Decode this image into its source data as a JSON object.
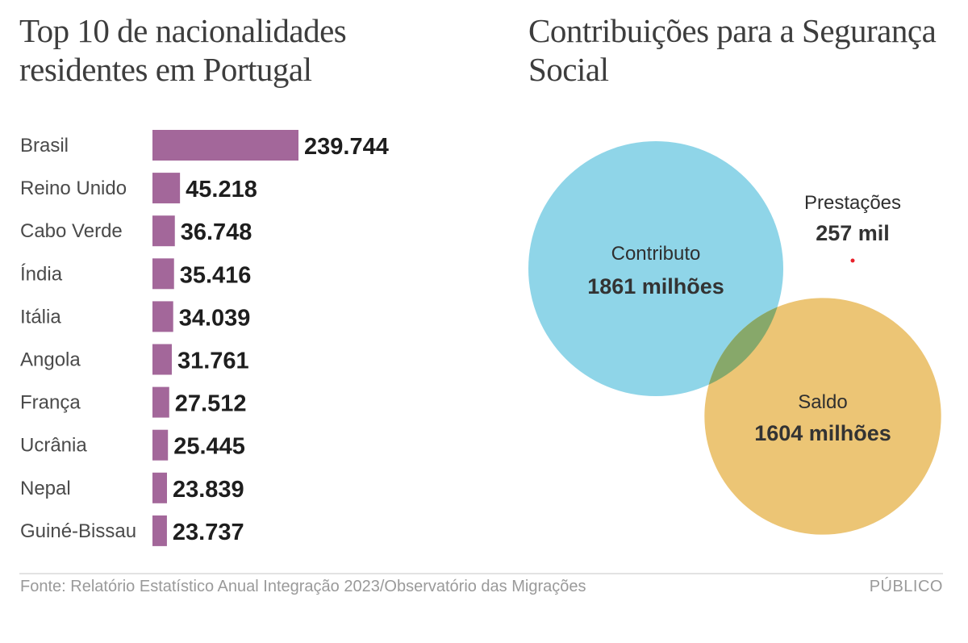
{
  "chart_data": [
    {
      "type": "bar",
      "orientation": "horizontal",
      "title": "Top 10 de nacionalidades residentes em Portugal",
      "categories": [
        "Brasil",
        "Reino Unido",
        "Cabo Verde",
        "Índia",
        "Itália",
        "Angola",
        "França",
        "Ucrânia",
        "Nepal",
        "Guiné-Bissau"
      ],
      "values": [
        239744,
        45218,
        36748,
        35416,
        34039,
        31761,
        27512,
        25445,
        23839,
        23737
      ],
      "value_labels": [
        "239.744",
        "45.218",
        "36.748",
        "35.416",
        "34.039",
        "31.761",
        "27.512",
        "25.445",
        "23.839",
        "23.737"
      ],
      "xlabel": "",
      "ylabel": "",
      "grid": false,
      "color": "#a3679a"
    },
    {
      "type": "bubble",
      "title": "Contribuições para a Segurança Social",
      "units": "EUR",
      "items": [
        {
          "name": "Contributo",
          "value": 1861000000,
          "label": "1861 milhões",
          "color": "#8fd5e8"
        },
        {
          "name": "Saldo",
          "value": 1604000000,
          "label": "1604 milhões",
          "color": "#ecc575"
        },
        {
          "name": "Prestações",
          "value": 257000,
          "label": "257 mil",
          "color": "#e8202a"
        }
      ],
      "overlap_color": "#87a86a"
    }
  ],
  "titles": {
    "left": "Top 10 de nacionalidades residentes em Portugal",
    "right": "Contribuições para a Segurança Social"
  },
  "footer": {
    "source": "Fonte: Relatório Estatístico Anual Integração 2023/Observatório das Migrações",
    "brand": "PÚBLICO"
  }
}
